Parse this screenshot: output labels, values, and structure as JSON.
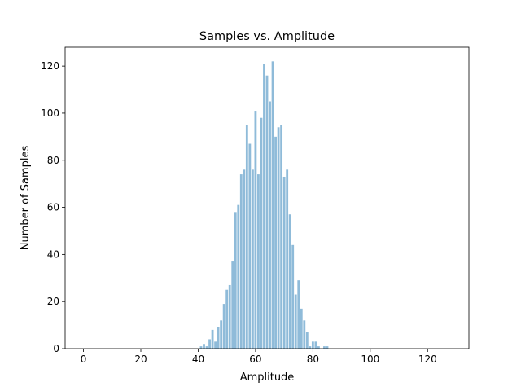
{
  "chart_data": {
    "type": "bar",
    "title": "Samples vs. Amplitude",
    "xlabel": "Amplitude",
    "ylabel": "Number of Samples",
    "xlim": [
      -6.4,
      134.4
    ],
    "ylim": [
      0,
      128
    ],
    "xticks": [
      0,
      20,
      40,
      60,
      80,
      100,
      120
    ],
    "yticks": [
      0,
      20,
      40,
      60,
      80,
      100,
      120
    ],
    "grid": false,
    "bar_color": "#8fbbd9",
    "bar_width": 0.8,
    "x": [
      41,
      42,
      43,
      44,
      45,
      46,
      47,
      48,
      49,
      50,
      51,
      52,
      53,
      54,
      55,
      56,
      57,
      58,
      59,
      60,
      61,
      62,
      63,
      64,
      65,
      66,
      67,
      68,
      69,
      70,
      71,
      72,
      73,
      74,
      75,
      76,
      77,
      78,
      79,
      80,
      81,
      82,
      84,
      85
    ],
    "values": [
      1,
      2,
      1,
      4,
      8,
      3,
      9,
      12,
      19,
      25,
      27,
      37,
      58,
      61,
      74,
      76,
      95,
      87,
      76,
      101,
      74,
      98,
      121,
      116,
      105,
      122,
      90,
      94,
      95,
      73,
      76,
      57,
      44,
      23,
      29,
      17,
      12,
      7,
      1,
      3,
      3,
      1,
      1,
      1
    ]
  }
}
